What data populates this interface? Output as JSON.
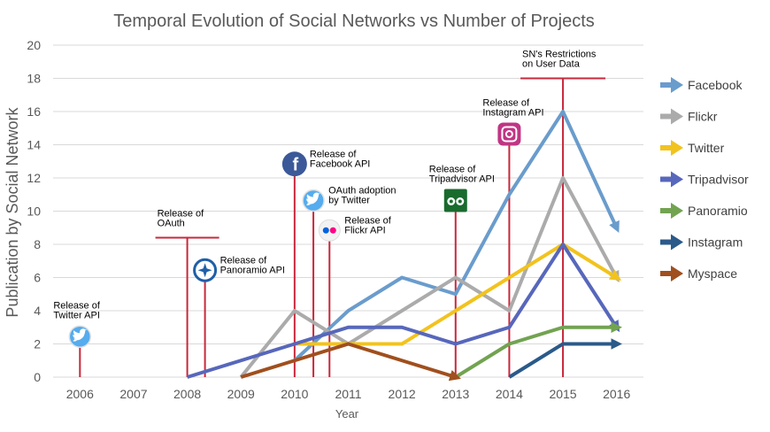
{
  "chart_data": {
    "type": "line",
    "title": "Temporal Evolution of Social Networks vs Number of Projects",
    "xlabel": "Year",
    "ylabel": "Publication by Social Network",
    "x": [
      2006,
      2007,
      2008,
      2009,
      2010,
      2011,
      2012,
      2013,
      2014,
      2015,
      2016
    ],
    "x_tick_labels": [
      "2006",
      "2007",
      "2008",
      "2009",
      "2010",
      "2011",
      "2012",
      "2013",
      "2014",
      "2015",
      "2016"
    ],
    "y_ticks": [
      0,
      2,
      4,
      6,
      8,
      10,
      12,
      14,
      16,
      18,
      20
    ],
    "y_tick_labels": [
      "0",
      "2",
      "4",
      "6",
      "8",
      "10",
      "12",
      "14",
      "16",
      "18",
      "20"
    ],
    "ylim": [
      0,
      20
    ],
    "grid": true,
    "legend_position": "right",
    "series": [
      {
        "name": "Facebook",
        "color": "#6a9ccc",
        "points": [
          [
            2010,
            1
          ],
          [
            2011,
            4
          ],
          [
            2012,
            6
          ],
          [
            2013,
            5
          ],
          [
            2014,
            11
          ],
          [
            2015,
            16
          ],
          [
            2016,
            9
          ]
        ]
      },
      {
        "name": "Flickr",
        "color": "#ababab",
        "points": [
          [
            2009,
            0
          ],
          [
            2010,
            4
          ],
          [
            2011,
            2
          ],
          [
            2012,
            4
          ],
          [
            2013,
            6
          ],
          [
            2014,
            4
          ],
          [
            2015,
            12
          ],
          [
            2016,
            6
          ]
        ]
      },
      {
        "name": "Twitter",
        "color": "#f2c31e",
        "points": [
          [
            2010,
            2
          ],
          [
            2011,
            2
          ],
          [
            2012,
            2
          ],
          [
            2013,
            4
          ],
          [
            2014,
            6
          ],
          [
            2015,
            8
          ],
          [
            2016,
            6
          ]
        ]
      },
      {
        "name": "Tripadvisor",
        "color": "#5767bb",
        "points": [
          [
            2008,
            0
          ],
          [
            2009,
            1
          ],
          [
            2010,
            2
          ],
          [
            2011,
            3
          ],
          [
            2012,
            3
          ],
          [
            2013,
            2
          ],
          [
            2014,
            3
          ],
          [
            2015,
            8
          ],
          [
            2016,
            3
          ]
        ]
      },
      {
        "name": "Panoramio",
        "color": "#72a351",
        "points": [
          [
            2013,
            0
          ],
          [
            2014,
            2
          ],
          [
            2015,
            3
          ],
          [
            2016,
            3
          ]
        ]
      },
      {
        "name": "Instagram",
        "color": "#2a5a8a",
        "points": [
          [
            2014,
            0
          ],
          [
            2015,
            2
          ],
          [
            2016,
            2
          ]
        ]
      },
      {
        "name": "Myspace",
        "color": "#a04f1e",
        "points": [
          [
            2009,
            0
          ],
          [
            2010,
            1
          ],
          [
            2011,
            2
          ],
          [
            2012,
            1
          ],
          [
            2013,
            0
          ]
        ]
      }
    ],
    "events": [
      {
        "x": 2006,
        "y": 1.8,
        "label_lines": [
          "Release of",
          "Twitter API"
        ],
        "icon": "twitter-icon"
      },
      {
        "x": 2008,
        "y": 8.4,
        "label_lines": [
          "Release of",
          "OAuth"
        ],
        "icon": ""
      },
      {
        "x": 2008.33,
        "y": 5.8,
        "label_lines": [
          "Release of",
          "Panoramio API"
        ],
        "icon": "panoramio-icon"
      },
      {
        "x": 2010,
        "y": 12.2,
        "label_lines": [
          "Release of",
          "Facebook API"
        ],
        "icon": "facebook-icon"
      },
      {
        "x": 2010.35,
        "y": 10,
        "label_lines": [
          "OAuth adoption",
          "by Twitter"
        ],
        "icon": "twitter-icon"
      },
      {
        "x": 2010.65,
        "y": 8.2,
        "label_lines": [
          "Release of",
          "Flickr API"
        ],
        "icon": "flickr-icon"
      },
      {
        "x": 2013,
        "y": 10,
        "label_lines": [
          "Release of",
          "Tripadvisor API"
        ],
        "icon": "tripadvisor-icon"
      },
      {
        "x": 2014,
        "y": 14,
        "label_lines": [
          "Release of",
          "Instagram API"
        ],
        "icon": "instagram-icon"
      },
      {
        "x": 2015,
        "y": 18,
        "label_lines": [
          "SN's Restrictions",
          "on User Data"
        ],
        "icon": ""
      }
    ],
    "event_line_color": "#c8283c"
  }
}
